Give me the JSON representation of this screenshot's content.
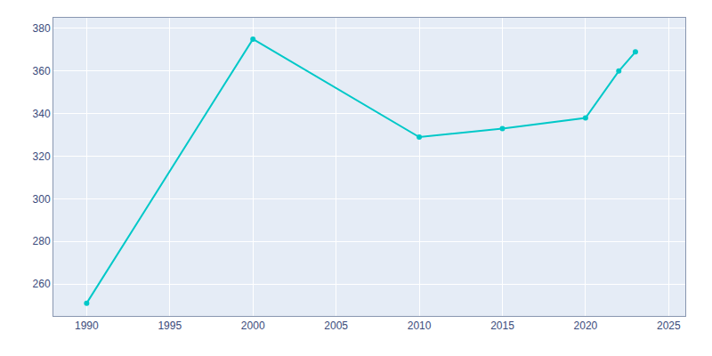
{
  "chart_data": {
    "type": "line",
    "x": [
      1990,
      2000,
      2010,
      2015,
      2020,
      2022,
      2023
    ],
    "values": [
      251,
      375,
      329,
      333,
      338,
      360,
      369
    ],
    "color": "#00C8C8",
    "marker": "circle",
    "xlim": [
      1988,
      2026
    ],
    "ylim": [
      245,
      385
    ],
    "xticks": [
      1990,
      1995,
      2000,
      2005,
      2010,
      2015,
      2020,
      2025
    ],
    "yticks": [
      260,
      280,
      300,
      320,
      340,
      360,
      380
    ],
    "grid": true
  }
}
